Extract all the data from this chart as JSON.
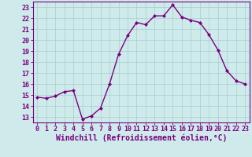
{
  "x": [
    0,
    1,
    2,
    3,
    4,
    5,
    6,
    7,
    8,
    9,
    10,
    11,
    12,
    13,
    14,
    15,
    16,
    17,
    18,
    19,
    20,
    21,
    22,
    23
  ],
  "y": [
    14.8,
    14.7,
    14.9,
    15.3,
    15.4,
    12.8,
    13.1,
    13.8,
    16.0,
    18.7,
    20.4,
    21.6,
    21.4,
    22.2,
    22.2,
    23.2,
    22.1,
    21.8,
    21.6,
    20.5,
    19.1,
    17.2,
    16.3,
    16.0
  ],
  "line_color": "#7B0080",
  "marker": "D",
  "marker_size": 2.0,
  "linewidth": 1.0,
  "background_color": "#ceeaea",
  "grid_color": "#aacece",
  "xlabel": "Windchill (Refroidissement éolien,°C)",
  "xlabel_fontsize": 7,
  "ylabel_ticks": [
    13,
    14,
    15,
    16,
    17,
    18,
    19,
    20,
    21,
    22,
    23
  ],
  "xlim": [
    -0.5,
    23.5
  ],
  "ylim": [
    12.5,
    23.5
  ],
  "tick_fontsize": 6,
  "font_color": "#7B0080"
}
